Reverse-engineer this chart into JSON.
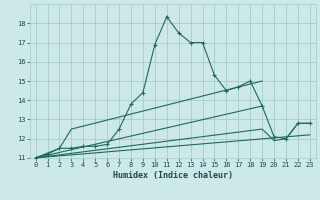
{
  "title": "",
  "xlabel": "Humidex (Indice chaleur)",
  "xlim": [
    -0.5,
    23.5
  ],
  "ylim": [
    11,
    19
  ],
  "yticks": [
    11,
    12,
    13,
    14,
    15,
    16,
    17,
    18
  ],
  "xticks": [
    0,
    1,
    2,
    3,
    4,
    5,
    6,
    7,
    8,
    9,
    10,
    11,
    12,
    13,
    14,
    15,
    16,
    17,
    18,
    19,
    20,
    21,
    22,
    23
  ],
  "bg_color": "#cce8e8",
  "grid_color": "#aad0d0",
  "line_color": "#1a6b5a",
  "line1_x": [
    0,
    1,
    2,
    3,
    4,
    5,
    6,
    7,
    8,
    9,
    10,
    11,
    12,
    13,
    14,
    15,
    16,
    17,
    18,
    19,
    20,
    21,
    22,
    23
  ],
  "line1_y": [
    11.0,
    11.2,
    11.5,
    11.5,
    11.6,
    11.6,
    11.7,
    12.5,
    13.8,
    14.4,
    16.9,
    18.35,
    17.5,
    17.0,
    17.0,
    15.3,
    14.5,
    14.7,
    15.0,
    13.7,
    12.1,
    12.0,
    12.8,
    12.8
  ],
  "line2_x": [
    0,
    2,
    3,
    19
  ],
  "line2_y": [
    11.0,
    11.5,
    12.5,
    15.0
  ],
  "line3_x": [
    0,
    19
  ],
  "line3_y": [
    11.0,
    13.7
  ],
  "line4_x": [
    0,
    19,
    20,
    21,
    22,
    23
  ],
  "line4_y": [
    11.0,
    12.5,
    11.9,
    12.0,
    12.8,
    12.8
  ],
  "line5_x": [
    0,
    23
  ],
  "line5_y": [
    11.0,
    12.2
  ]
}
